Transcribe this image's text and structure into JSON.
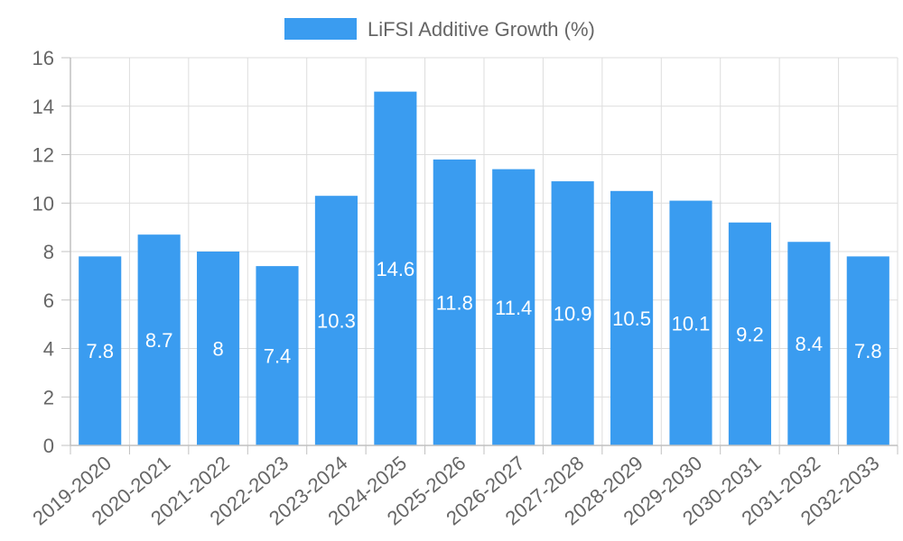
{
  "chart_data": {
    "type": "bar",
    "title": "",
    "xlabel": "",
    "ylabel": "",
    "categories": [
      "2019-2020",
      "2020-2021",
      "2021-2022",
      "2022-2023",
      "2023-2024",
      "2024-2025",
      "2025-2026",
      "2026-2027",
      "2027-2028",
      "2028-2029",
      "2029-2030",
      "2030-2031",
      "2031-2032",
      "2032-2033"
    ],
    "series": [
      {
        "name": "LiFSI Additive Growth (%)",
        "values": [
          7.8,
          8.7,
          8,
          7.4,
          10.3,
          14.6,
          11.8,
          11.4,
          10.9,
          10.5,
          10.1,
          9.2,
          8.4,
          7.8
        ],
        "color": "#3a9cf0"
      }
    ],
    "ylim": [
      0,
      16
    ],
    "yticks": [
      0,
      2,
      4,
      6,
      8,
      10,
      12,
      14,
      16
    ],
    "grid": true,
    "legend_position": "top-center",
    "data_labels": true
  },
  "colors": {
    "bar": "#3a9cf0",
    "grid": "#dddddd",
    "axis": "#c0c0c0",
    "label_text": "#666666",
    "data_label_text": "#ffffff"
  }
}
